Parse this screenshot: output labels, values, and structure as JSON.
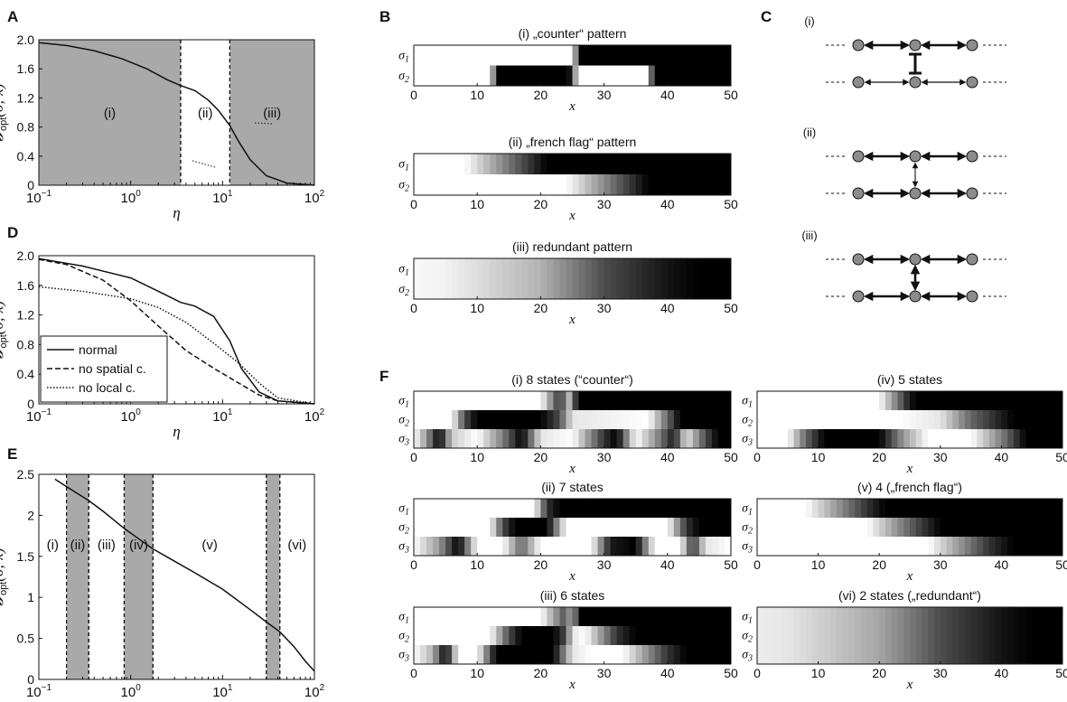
{
  "chart_data": [
    {
      "panel": "A",
      "type": "line",
      "ylabel": "𝓘opt(σ;x)",
      "xlabel": "η",
      "xscale": "log",
      "xlim": [
        0.1,
        100
      ],
      "ylim": [
        0,
        2
      ],
      "yticks": [
        "0",
        "0.4",
        "0.8",
        "1.2",
        "1.6",
        "2.0"
      ],
      "xticks": [
        {
          "base": "10",
          "exp": "−1"
        },
        {
          "base": "10",
          "exp": "0"
        },
        {
          "base": "10",
          "exp": "1"
        },
        {
          "base": "10",
          "exp": "2"
        }
      ],
      "regions": [
        {
          "label": "(i)",
          "from": 0.1,
          "to": 3.5,
          "shaded": true
        },
        {
          "label": "(ii)",
          "from": 3.5,
          "to": 12,
          "shaded": false
        },
        {
          "label": "(iii)",
          "from": 12,
          "to": 100,
          "shaded": true
        }
      ],
      "series": [
        {
          "style": "solid",
          "x": [
            0.1,
            0.2,
            0.4,
            0.8,
            1.5,
            2.5,
            3.5,
            5,
            7,
            9,
            12,
            15,
            20,
            30,
            50,
            100
          ],
          "y": [
            1.96,
            1.92,
            1.85,
            1.74,
            1.6,
            1.45,
            1.37,
            1.3,
            1.17,
            1.03,
            0.82,
            0.6,
            0.35,
            0.13,
            0.03,
            0.0
          ]
        }
      ]
    },
    {
      "panel": "D",
      "type": "line",
      "ylabel": "𝓘opt(σ;x)",
      "xlabel": "η",
      "xscale": "log",
      "xlim": [
        0.1,
        100
      ],
      "ylim": [
        0,
        2
      ],
      "yticks": [
        "0",
        "0.4",
        "0.8",
        "1.2",
        "1.6",
        "2.0"
      ],
      "xticks": [
        {
          "base": "10",
          "exp": "−1"
        },
        {
          "base": "10",
          "exp": "0"
        },
        {
          "base": "10",
          "exp": "1"
        },
        {
          "base": "10",
          "exp": "2"
        }
      ],
      "legend": "bottom-left",
      "series": [
        {
          "name": "normal",
          "style": "solid",
          "x": [
            0.1,
            0.3,
            1,
            2,
            3.5,
            5,
            8,
            12,
            16,
            25,
            40,
            100
          ],
          "y": [
            1.96,
            1.86,
            1.7,
            1.52,
            1.37,
            1.32,
            1.18,
            0.85,
            0.48,
            0.16,
            0.04,
            0.0
          ]
        },
        {
          "name": "no spatial c.",
          "style": "dashed",
          "x": [
            0.1,
            0.2,
            0.5,
            1,
            2,
            4,
            8,
            15,
            25,
            40,
            100
          ],
          "y": [
            1.95,
            1.88,
            1.67,
            1.39,
            1.05,
            0.72,
            0.48,
            0.28,
            0.12,
            0.04,
            0.0
          ]
        },
        {
          "name": "no local c.",
          "style": "dotted",
          "x": [
            0.1,
            0.3,
            1,
            2,
            4,
            8,
            15,
            25,
            40,
            100
          ],
          "y": [
            1.58,
            1.52,
            1.42,
            1.3,
            1.1,
            0.82,
            0.55,
            0.28,
            0.08,
            0.0
          ]
        }
      ]
    },
    {
      "panel": "E",
      "type": "line",
      "ylabel": "𝓘opt(σ;x)",
      "xlabel": "η",
      "xscale": "log",
      "xlim": [
        0.1,
        100
      ],
      "ylim": [
        0,
        2.5
      ],
      "yticks": [
        "0",
        "0.5",
        "1",
        "1.5",
        "2",
        "2.5"
      ],
      "xticks": [
        {
          "base": "10",
          "exp": "−1"
        },
        {
          "base": "10",
          "exp": "0"
        },
        {
          "base": "10",
          "exp": "1"
        },
        {
          "base": "10",
          "exp": "2"
        }
      ],
      "regions": [
        {
          "label": "(i)",
          "from": 0.1,
          "to": 0.2,
          "shaded": false
        },
        {
          "label": "(ii)",
          "from": 0.2,
          "to": 0.35,
          "shaded": true
        },
        {
          "label": "(iii)",
          "from": 0.35,
          "to": 0.85,
          "shaded": false
        },
        {
          "label": "(iv)",
          "from": 0.85,
          "to": 1.75,
          "shaded": true
        },
        {
          "label": "(v)",
          "from": 1.75,
          "to": 30,
          "shaded": false
        },
        {
          "label": "(vi)",
          "from": 42,
          "to": 100,
          "shaded": false
        },
        {
          "label": "",
          "from": 30,
          "to": 42,
          "shaded": true
        }
      ],
      "series": [
        {
          "style": "solid",
          "x": [
            0.15,
            0.2,
            0.35,
            0.5,
            0.85,
            1.2,
            1.75,
            3,
            5,
            10,
            20,
            30,
            42,
            60,
            80,
            100
          ],
          "y": [
            2.44,
            2.35,
            2.18,
            2.05,
            1.84,
            1.72,
            1.59,
            1.44,
            1.3,
            1.1,
            0.85,
            0.7,
            0.58,
            0.4,
            0.22,
            0.1
          ]
        }
      ]
    },
    {
      "panel": "B",
      "type": "heatmap",
      "rows": [
        "σ1",
        "σ2"
      ],
      "xlabel": "x",
      "xticks": [
        "0",
        "10",
        "20",
        "30",
        "40",
        "50"
      ],
      "patterns": [
        {
          "title": "(i) „counter“ pattern",
          "rows_white_to_black": [
            [
              [
                0,
                25,
                1
              ],
              [
                25,
                26,
                0.5
              ],
              [
                26,
                50,
                0
              ]
            ],
            [
              [
                0,
                12.5,
                1
              ],
              [
                12.5,
                13,
                0.6
              ],
              [
                13,
                24.5,
                0
              ],
              [
                24.5,
                26,
                0.4
              ],
              [
                26,
                37,
                1
              ],
              [
                37,
                38,
                0.4
              ],
              [
                38,
                50,
                0
              ]
            ]
          ]
        },
        {
          "title": "(ii) „french flag“ pattern",
          "edges": [
            [
              8,
              21
            ],
            [
              24,
              37
            ]
          ]
        },
        {
          "title": "(iii) redundant pattern",
          "edges": [
            [
              0,
              45
            ],
            [
              0,
              45
            ]
          ]
        }
      ]
    },
    {
      "panel": "F",
      "type": "heatmap",
      "rows": [
        "σ1",
        "σ2",
        "σ3"
      ],
      "xlabel": "x",
      "xticks": [
        "0",
        "10",
        "20",
        "30",
        "40",
        "50"
      ],
      "patterns": [
        {
          "title": "(i) 8 states (“counter“)"
        },
        {
          "title": "(ii) 7 states"
        },
        {
          "title": "(iii) 6 states"
        },
        {
          "title": "(iv) 5 states"
        },
        {
          "title": "(v) 4 („french flag“)"
        },
        {
          "title": "(vi) 2 states („redundant“)"
        }
      ]
    }
  ],
  "panels": {
    "A": {
      "letter": "A",
      "regions": [
        "(i)",
        "(ii)",
        "(iii)"
      ]
    },
    "B": {
      "letter": "B"
    },
    "C": {
      "letter": "C",
      "rows": [
        "(i)",
        "(ii)",
        "(iii)"
      ]
    },
    "D": {
      "letter": "D",
      "legend": [
        "normal",
        "no spatial c.",
        "no local c."
      ]
    },
    "E": {
      "letter": "E",
      "regions": [
        "(i)",
        "(ii)",
        "(iii)",
        "(iv)",
        "(v)",
        "(vi)"
      ]
    },
    "F": {
      "letter": "F"
    }
  },
  "labels": {
    "eta": "η",
    "x": "x",
    "ylabel_main": "𝓘",
    "ylabel_sub": "opt",
    "ylabel_args": "(σ; x)",
    "sigma": "σ",
    "sigma_subs": [
      "1",
      "2",
      "3"
    ]
  },
  "colors": {
    "shade": "#a9a9a9",
    "line": "#111111",
    "node": "#8c8c8c"
  }
}
